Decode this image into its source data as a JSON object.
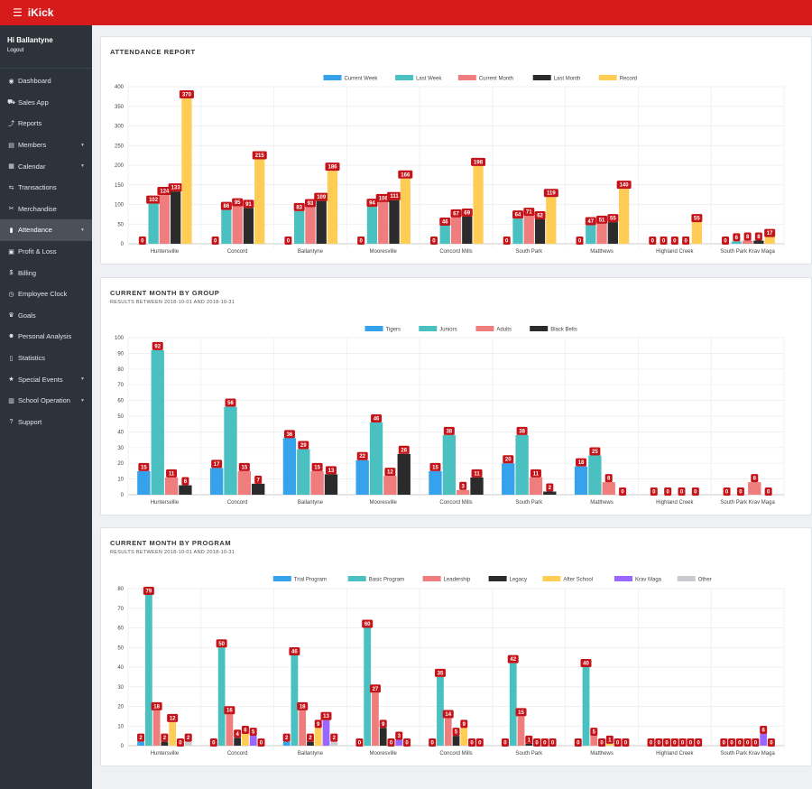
{
  "app": {
    "title": "iKick",
    "menu_icon": "hamburger-icon"
  },
  "user": {
    "greeting": "Hi Ballantyne",
    "logout": "Logout"
  },
  "sidebar": {
    "items": [
      {
        "label": "Dashboard",
        "icon": "dashboard-icon",
        "glyph": "◉",
        "caret": false
      },
      {
        "label": "Sales App",
        "icon": "cart-icon",
        "glyph": "⛟",
        "caret": false
      },
      {
        "label": "Reports",
        "icon": "line-chart-icon",
        "glyph": "⤴",
        "caret": false
      },
      {
        "label": "Members",
        "icon": "id-card-icon",
        "glyph": "▤",
        "caret": true
      },
      {
        "label": "Calendar",
        "icon": "calendar-icon",
        "glyph": "▦",
        "caret": true
      },
      {
        "label": "Transactions",
        "icon": "transfer-icon",
        "glyph": "⇆",
        "caret": false
      },
      {
        "label": "Merchandise",
        "icon": "tag-icon",
        "glyph": "✂",
        "caret": false
      },
      {
        "label": "Attendance",
        "icon": "clipboard-icon",
        "glyph": "▮",
        "caret": true,
        "active": true
      },
      {
        "label": "Profit & Loss",
        "icon": "bank-icon",
        "glyph": "▣",
        "caret": false
      },
      {
        "label": "Billing",
        "icon": "money-icon",
        "glyph": "$",
        "caret": false
      },
      {
        "label": "Employee Clock",
        "icon": "clock-icon",
        "glyph": "◷",
        "caret": false
      },
      {
        "label": "Goals",
        "icon": "trophy-icon",
        "glyph": "♛",
        "caret": false
      },
      {
        "label": "Personal Analysis",
        "icon": "users-icon",
        "glyph": "☻",
        "caret": false
      },
      {
        "label": "Statistics",
        "icon": "document-icon",
        "glyph": "▯",
        "caret": false
      },
      {
        "label": "Special Events",
        "icon": "star-icon",
        "glyph": "★",
        "caret": true
      },
      {
        "label": "School Operation",
        "icon": "building-icon",
        "glyph": "▥",
        "caret": true
      },
      {
        "label": "Support",
        "icon": "help-icon",
        "glyph": "?",
        "caret": false
      }
    ]
  },
  "colors": {
    "topbar": "#d71b1b",
    "sidebar": "#2c333a",
    "label_badge": "#c4141a"
  },
  "cards": [
    {
      "title": "ATTENDANCE REPORT",
      "subtitle": ""
    },
    {
      "title": "CURRENT MONTH BY GROUP",
      "subtitle": "RESULTS BETWEEN 2018-10-01 AND 2018-10-31"
    },
    {
      "title": "CURRENT MONTH BY PROGRAM",
      "subtitle": "RESULTS BETWEEN 2018-10-01 AND 2018-10-31"
    }
  ],
  "chart_data": [
    {
      "type": "bar",
      "title": "ATTENDANCE REPORT",
      "categories": [
        "Huntersville",
        "Concord",
        "Ballantyne",
        "Mooresville",
        "Concord Mills",
        "South Park",
        "Matthews",
        "Highland Creek",
        "South Park Krav Maga"
      ],
      "ylim": [
        0,
        400
      ],
      "yticks": [
        0,
        50,
        100,
        150,
        200,
        250,
        300,
        350,
        400
      ],
      "grid": true,
      "legend": "top-center",
      "series": [
        {
          "name": "Current Week",
          "color": "#36a2eb",
          "values": [
            0,
            0,
            0,
            0,
            0,
            0,
            0,
            0,
            0
          ]
        },
        {
          "name": "Last Week",
          "color": "#4bc0c0",
          "values": [
            102,
            86,
            83,
            94,
            46,
            64,
            47,
            0,
            6
          ]
        },
        {
          "name": "Current Month",
          "color": "#f07d7d",
          "values": [
            124,
            95,
            93,
            106,
            67,
            71,
            51,
            0,
            8
          ]
        },
        {
          "name": "Last Month",
          "color": "#2b2b2b",
          "values": [
            133,
            91,
            109,
            111,
            69,
            62,
            55,
            0,
            8
          ]
        },
        {
          "name": "Record",
          "color": "#ffcd56",
          "values": [
            370,
            215,
            186,
            166,
            198,
            119,
            140,
            55,
            17
          ]
        }
      ]
    },
    {
      "type": "bar",
      "title": "CURRENT MONTH BY GROUP",
      "categories": [
        "Huntersville",
        "Concord",
        "Ballantyne",
        "Mooresville",
        "Concord Mills",
        "South Park",
        "Matthews",
        "Highland Creek",
        "South Park Krav Maga"
      ],
      "ylim": [
        0,
        100
      ],
      "yticks": [
        0,
        10,
        20,
        30,
        40,
        50,
        60,
        70,
        80,
        90,
        100
      ],
      "grid": true,
      "legend": "top-center",
      "series": [
        {
          "name": "Tigers",
          "color": "#36a2eb",
          "values": [
            15,
            17,
            36,
            22,
            15,
            20,
            18,
            0,
            0
          ]
        },
        {
          "name": "Juniors",
          "color": "#4bc0c0",
          "values": [
            92,
            56,
            29,
            46,
            38,
            38,
            25,
            0,
            0
          ]
        },
        {
          "name": "Adults",
          "color": "#f07d7d",
          "values": [
            11,
            15,
            15,
            12,
            3,
            11,
            8,
            0,
            8
          ]
        },
        {
          "name": "Black Belts",
          "color": "#2b2b2b",
          "values": [
            6,
            7,
            13,
            26,
            11,
            2,
            0,
            0,
            0
          ]
        }
      ]
    },
    {
      "type": "bar",
      "title": "CURRENT MONTH BY PROGRAM",
      "categories": [
        "Huntersville",
        "Concord",
        "Ballantyne",
        "Mooresville",
        "Concord Mills",
        "South Park",
        "Matthews",
        "Highland Creek",
        "South Park Krav Maga"
      ],
      "ylim": [
        0,
        80
      ],
      "yticks": [
        0,
        10,
        20,
        30,
        40,
        50,
        60,
        70,
        80
      ],
      "grid": true,
      "legend": "top-center",
      "series": [
        {
          "name": "Trial Program",
          "color": "#36a2eb",
          "values": [
            2,
            0,
            2,
            0,
            0,
            0,
            0,
            0,
            0
          ]
        },
        {
          "name": "Basic Program",
          "color": "#4bc0c0",
          "values": [
            79,
            50,
            46,
            60,
            35,
            42,
            40,
            0,
            0
          ]
        },
        {
          "name": "Leadership",
          "color": "#f07d7d",
          "values": [
            18,
            16,
            18,
            27,
            14,
            15,
            5,
            0,
            0
          ]
        },
        {
          "name": "Legacy",
          "color": "#2b2b2b",
          "values": [
            2,
            4,
            2,
            9,
            5,
            1,
            0,
            0,
            0
          ]
        },
        {
          "name": "After School",
          "color": "#ffcd56",
          "values": [
            12,
            6,
            9,
            0,
            9,
            0,
            1,
            0,
            0
          ]
        },
        {
          "name": "Krav Maga",
          "color": "#9966ff",
          "values": [
            0,
            5,
            13,
            3,
            0,
            0,
            0,
            0,
            6
          ]
        },
        {
          "name": "Other",
          "color": "#c9cbcf",
          "values": [
            2,
            0,
            2,
            0,
            0,
            0,
            0,
            0,
            0
          ]
        }
      ]
    }
  ]
}
